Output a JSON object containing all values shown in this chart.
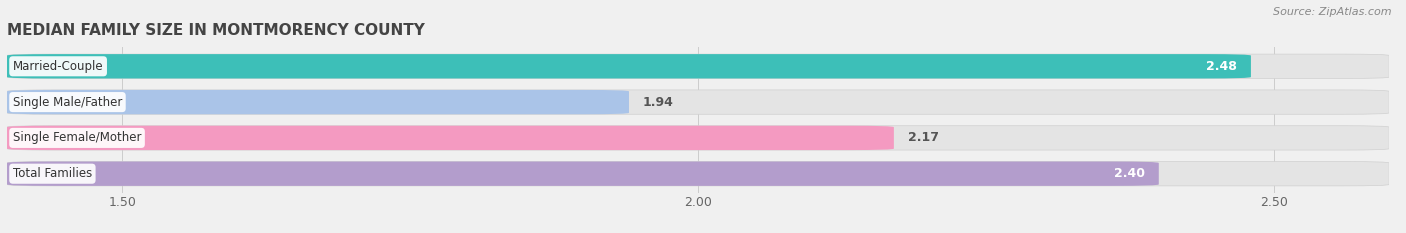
{
  "title": "Median Family Size in Montmorency County",
  "title_display": "MEDIAN FAMILY SIZE IN MONTMORENCY COUNTY",
  "source": "Source: ZipAtlas.com",
  "categories": [
    "Married-Couple",
    "Single Male/Father",
    "Single Female/Mother",
    "Total Families"
  ],
  "values": [
    2.48,
    1.94,
    2.17,
    2.4
  ],
  "bar_colors": [
    "#3dbfb8",
    "#aac4e8",
    "#f49ac1",
    "#b39dcc"
  ],
  "xlim_min": 1.4,
  "xlim_max": 2.6,
  "xticks": [
    1.5,
    2.0,
    2.5
  ],
  "background_color": "#f0f0f0",
  "bar_track_color": "#e4e4e4",
  "title_fontsize": 11,
  "label_fontsize": 8.5,
  "value_fontsize": 9,
  "source_fontsize": 8
}
